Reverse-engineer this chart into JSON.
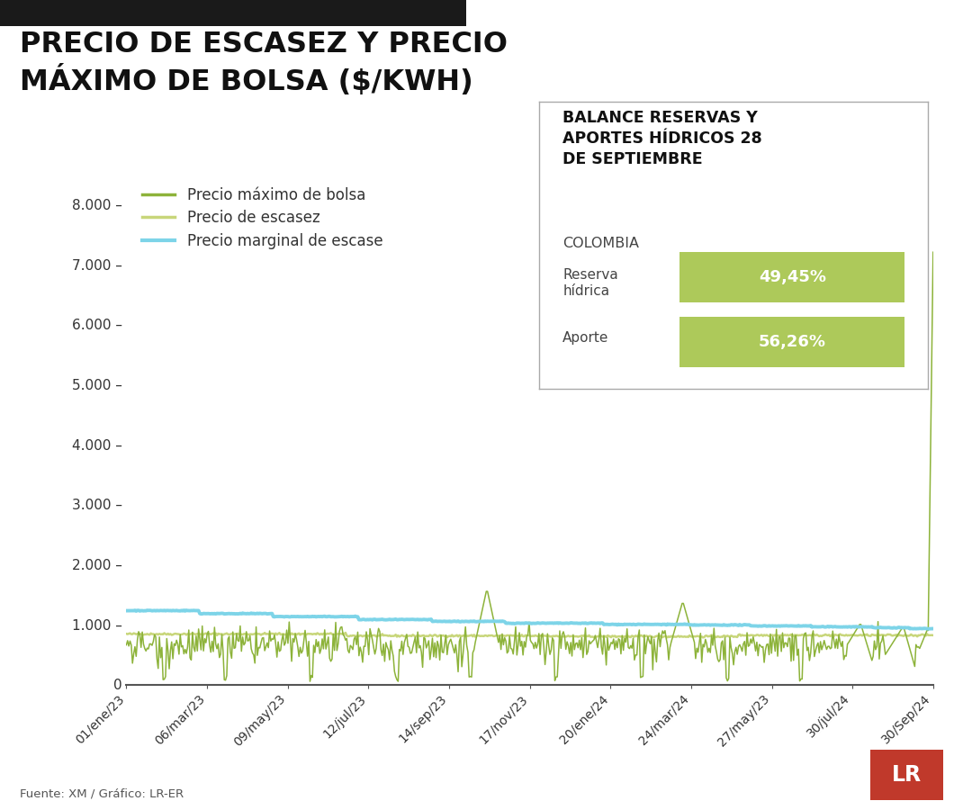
{
  "title_line1": "PRECIO DE ESCASEZ Y PRECIO",
  "title_line2": "MÁXIMO DE BOLSA ($/KWH)",
  "title_fontsize": 23,
  "background_color": "#ffffff",
  "ylim": [
    0,
    8500
  ],
  "yticks": [
    0,
    1000,
    2000,
    3000,
    4000,
    5000,
    6000,
    7000,
    8000
  ],
  "ytick_labels": [
    "0",
    "1.000 –",
    "2.000 –",
    "3.000 –",
    "4.000 –",
    "5.000 –",
    "6.000 –",
    "7.000 –",
    "8.000 –"
  ],
  "xtick_labels": [
    "01/ene/23",
    "06/mar/23",
    "09/may/23",
    "12/jul/23",
    "14/sep/23",
    "17/nov/23",
    "20/ene/24",
    "24/mar/24",
    "27/may/23",
    "30/jul/24",
    "30/Sep/24"
  ],
  "legend_entries": [
    {
      "label": "Precio máximo de bolsa",
      "color": "#8db33a"
    },
    {
      "label": "Precio de escasez",
      "color": "#c8d67a"
    },
    {
      "label": "Precio marginal de escase",
      "color": "#7dd4e8"
    }
  ],
  "color_bolsa": "#8db33a",
  "color_escasez": "#c8d67a",
  "color_marginal": "#7dd4e8",
  "infobox_title": "BALANCE RESERVAS Y\nAPORTES HÍDRICOS 28\nDE SEPTIEMBRE",
  "infobox_country": "COLOMBIA",
  "infobox_row1_label": "Reserva\nhídrica",
  "infobox_row1_value": "49,45%",
  "infobox_row2_label": "Aporte",
  "infobox_row2_value": "56,26%",
  "infobox_bar_color": "#adc95a",
  "source": "Fuente: XM / Gráfico: LR-ER",
  "lr_badge_color": "#c0392b",
  "top_bar_color": "#1a1a1a"
}
